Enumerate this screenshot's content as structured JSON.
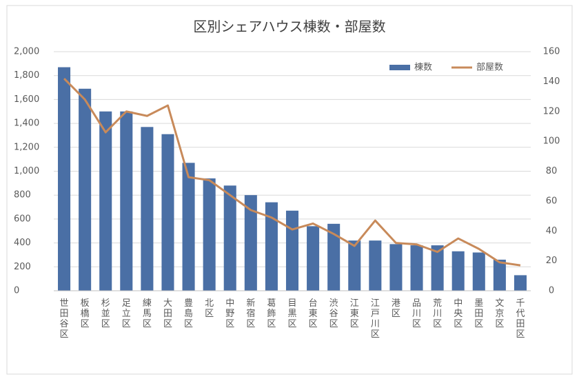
{
  "chart_data": {
    "type": "bar_line",
    "title": "区別シェアハウス棟数・部屋数",
    "categories": [
      "世田谷区",
      "板橋区",
      "杉並区",
      "足立区",
      "練馬区",
      "大田区",
      "豊島区",
      "北区",
      "中野区",
      "新宿区",
      "葛飾区",
      "目黒区",
      "台東区",
      "渋谷区",
      "江東区",
      "江戸川区",
      "港区",
      "品川区",
      "荒川区",
      "中央区",
      "墨田区",
      "文京区",
      "千代田区"
    ],
    "series": [
      {
        "name": "棟数",
        "type": "bar",
        "color": "#4a6fa5",
        "axis": "y",
        "values": [
          1870,
          1690,
          1500,
          1500,
          1370,
          1310,
          1070,
          940,
          880,
          800,
          740,
          670,
          540,
          560,
          420,
          420,
          390,
          380,
          380,
          330,
          320,
          260,
          130
        ]
      },
      {
        "name": "部屋数",
        "type": "line",
        "color": "#c88a5a",
        "axis": "y2",
        "values": [
          142,
          128,
          106,
          120,
          117,
          124,
          76,
          74,
          64,
          54,
          49,
          41,
          45,
          38,
          30,
          47,
          32,
          31,
          26,
          35,
          28,
          19,
          17
        ]
      }
    ],
    "ylim": [
      0,
      2000
    ],
    "yticks": [
      0,
      200,
      400,
      600,
      800,
      {
        "value": 1000,
        "label": "1,000"
      },
      {
        "value": 1200,
        "label": "1,200"
      },
      {
        "value": 1400,
        "label": "1,400"
      },
      {
        "value": 1600,
        "label": "1,600"
      },
      {
        "value": 1800,
        "label": "1,800"
      },
      {
        "value": 2000,
        "label": "2,000"
      }
    ],
    "y2lim": [
      0,
      160
    ],
    "y2ticks": [
      0,
      20,
      40,
      60,
      80,
      100,
      120,
      140,
      160
    ],
    "grid": true,
    "legend": "top-right"
  }
}
